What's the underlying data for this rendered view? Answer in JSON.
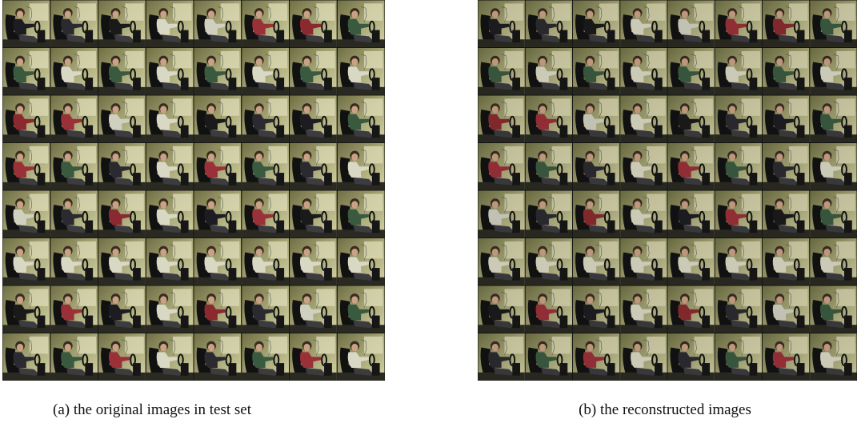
{
  "figure": {
    "panels": [
      {
        "caption": "(a) the original images in test set"
      },
      {
        "caption": "(b) the reconstructed images"
      }
    ]
  }
}
